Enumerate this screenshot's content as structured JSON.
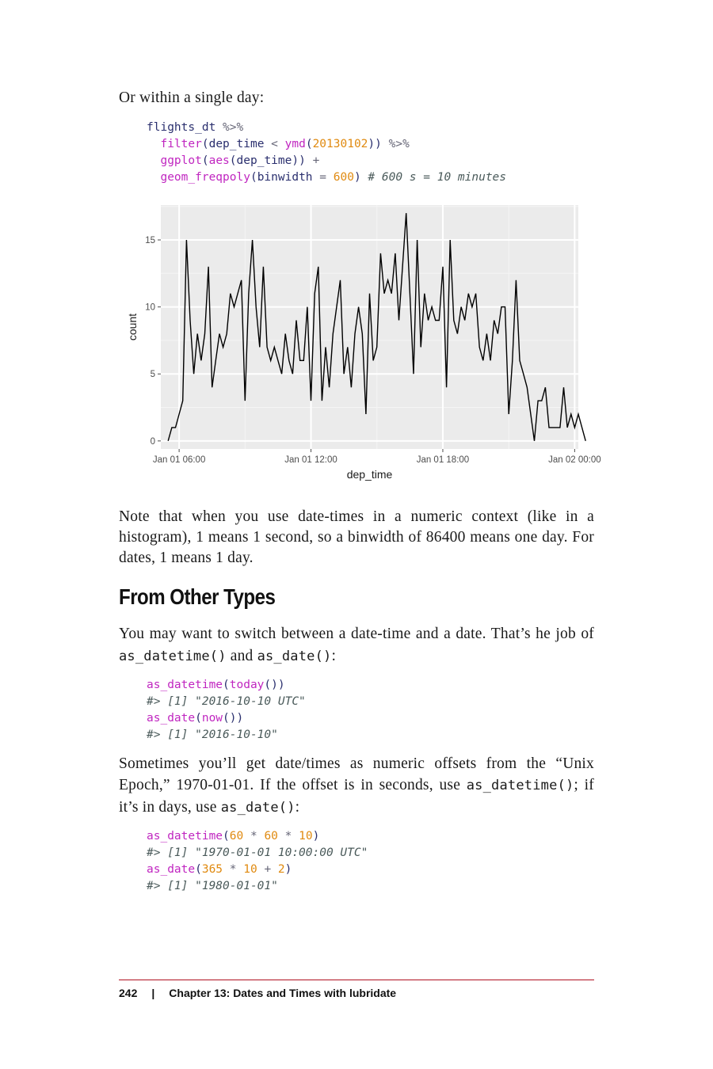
{
  "intro": "Or within a single day:",
  "code1": {
    "line1": [
      "flights_dt",
      " %>%"
    ],
    "line2": [
      "filter",
      "(",
      "dep_time",
      " < ",
      "ymd",
      "(",
      "20130102",
      "))",
      " %>%"
    ],
    "line3": [
      "ggplot",
      "(",
      "aes",
      "(",
      "dep_time",
      "))",
      " +"
    ],
    "line4": [
      "geom_freqpoly",
      "(",
      "binwidth",
      " = ",
      "600",
      ")",
      " # 600 s = 10 minutes"
    ]
  },
  "chart_data": {
    "type": "line",
    "xlabel": "dep_time",
    "ylabel": "count",
    "x_ticks": [
      "Jan 01 06:00",
      "Jan 01 12:00",
      "Jan 01 18:00",
      "Jan 02 00:00"
    ],
    "y_ticks": [
      "0",
      "5",
      "10",
      "15"
    ],
    "ylim": [
      0,
      17
    ],
    "x_range": [
      "Jan 01 05:10",
      "Jan 02 00:10"
    ],
    "bin_minutes": 10,
    "grid": true,
    "background": "#ebebeb",
    "line_color": "#000000",
    "values": [
      0,
      1,
      1,
      2,
      3,
      15,
      9,
      5,
      8,
      6,
      8,
      13,
      4,
      6,
      8,
      7,
      8,
      11,
      10,
      11,
      12,
      3,
      11,
      15,
      10,
      7,
      13,
      7,
      6,
      7,
      6,
      5,
      8,
      6,
      5,
      9,
      6,
      6,
      10,
      3,
      11,
      13,
      3,
      7,
      4,
      8,
      10,
      12,
      5,
      7,
      4,
      8,
      10,
      8,
      2,
      11,
      6,
      7,
      14,
      11,
      12,
      11,
      14,
      9,
      13,
      17,
      11,
      5,
      15,
      7,
      11,
      9,
      10,
      9,
      9,
      13,
      4,
      15,
      9,
      8,
      10,
      9,
      11,
      10,
      11,
      7,
      6,
      8,
      6,
      9,
      8,
      10,
      10,
      2,
      6,
      12,
      6,
      5,
      4,
      2,
      0,
      3,
      3,
      4,
      1,
      1,
      1,
      1,
      4,
      1,
      2,
      1,
      2,
      1,
      0
    ]
  },
  "note": "Note that when you use date-times in a numeric context (like in a histogram), 1 means 1 second, so a binwidth of 86400 means one day. For dates, 1 means 1 day.",
  "heading": "From Other Types",
  "para2": {
    "part1": "You may want to switch between a date-time and a date. That’s he job of ",
    "code_a": "as_datetime()",
    "part2": " and ",
    "code_b": "as_date()",
    "part3": ":"
  },
  "code2": {
    "l1": [
      "as_datetime",
      "(",
      "today",
      "())"
    ],
    "l2": "#> [1] \"2016-10-10 UTC\"",
    "l3": [
      "as_date",
      "(",
      "now",
      "())"
    ],
    "l4": "#> [1] \"2016-10-10\""
  },
  "para3": {
    "part1": "Sometimes you’ll get date/times as numeric offsets from the “Unix Epoch,” 1970-01-01. If the offset is in seconds, use ",
    "code_a": "as_datetime()",
    "part2": "; if it’s in days, use ",
    "code_b": "as_date()",
    "part3": ":"
  },
  "code3": {
    "l1": [
      "as_datetime",
      "(",
      "60",
      " * ",
      "60",
      " * ",
      "10",
      ")"
    ],
    "l2": "#> [1] \"1970-01-01 10:00:00 UTC\"",
    "l3": [
      "as_date",
      "(",
      "365",
      " * ",
      "10",
      " + ",
      "2",
      ")"
    ],
    "l4": "#> [1] \"1980-01-01\""
  },
  "footer": {
    "page": "242",
    "sep": "|",
    "chapter": "Chapter 13: Dates and Times with lubridate"
  }
}
